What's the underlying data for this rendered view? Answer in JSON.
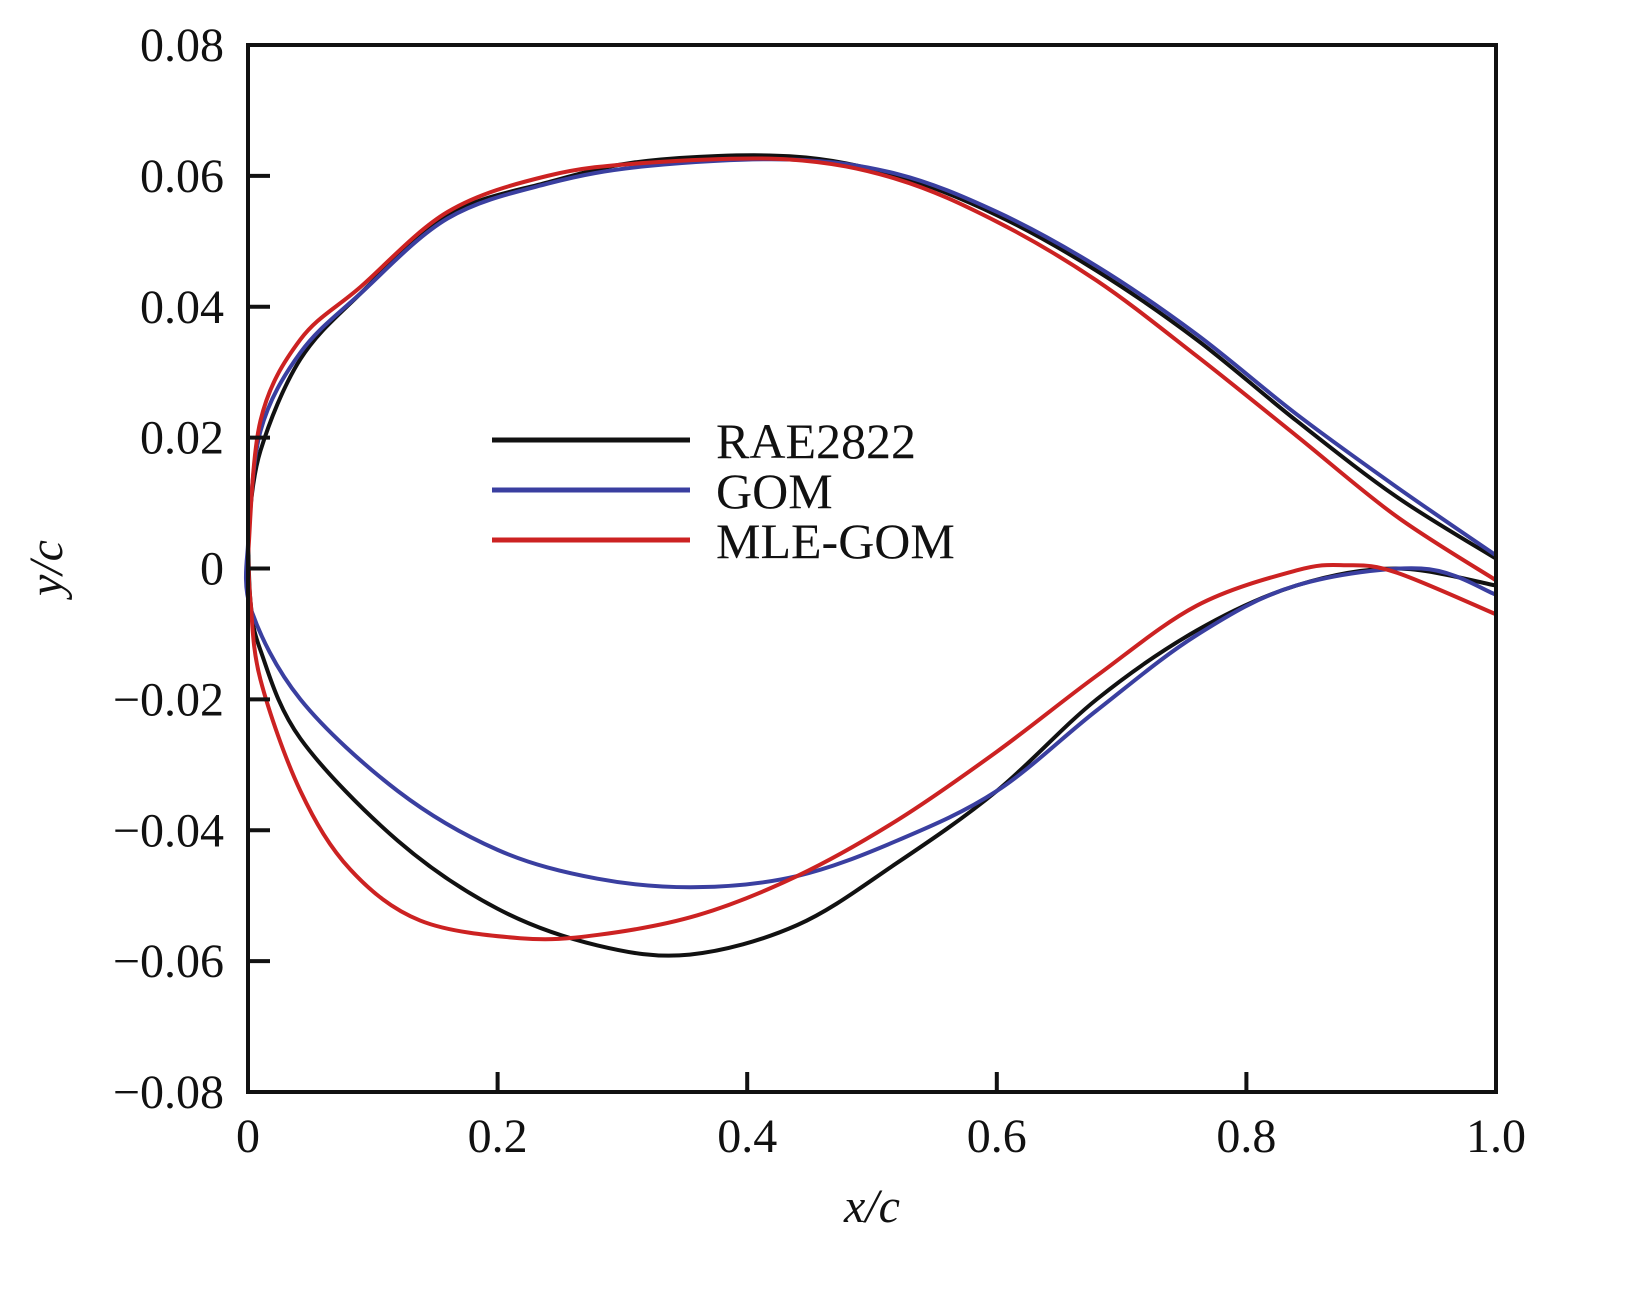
{
  "chart_data": {
    "type": "line",
    "title": "",
    "xlabel": "x/c",
    "ylabel": "y/c",
    "xlim": [
      0,
      1.0
    ],
    "ylim": [
      -0.08,
      0.08
    ],
    "xticks": [
      0,
      0.2,
      0.4,
      0.6,
      0.8,
      1.0
    ],
    "xtick_labels": [
      "0",
      "0.2",
      "0.4",
      "0.6",
      "0.8",
      "1.0"
    ],
    "yticks": [
      -0.08,
      -0.06,
      -0.04,
      -0.02,
      0,
      0.02,
      0.04,
      0.06,
      0.08
    ],
    "ytick_labels": [
      "−0.08",
      "−0.06",
      "−0.04",
      "−0.02",
      "0",
      "0.02",
      "0.04",
      "0.06",
      "0.08"
    ],
    "grid": false,
    "legend_position": "center-left",
    "series": [
      {
        "name": "RAE2822",
        "color": "#111111",
        "upper": [
          [
            0,
            0.006
          ],
          [
            0.01,
            0.018
          ],
          [
            0.042,
            0.032
          ],
          [
            0.09,
            0.042
          ],
          [
            0.16,
            0.054
          ],
          [
            0.24,
            0.059
          ],
          [
            0.32,
            0.0623
          ],
          [
            0.434,
            0.063
          ],
          [
            0.52,
            0.06
          ],
          [
            0.6,
            0.054
          ],
          [
            0.68,
            0.0455
          ],
          [
            0.76,
            0.035
          ],
          [
            0.84,
            0.0226
          ],
          [
            0.92,
            0.011
          ],
          [
            1.0,
            0.0015
          ]
        ],
        "lower": [
          [
            0,
            0.006
          ],
          [
            0.002,
            -0.005
          ],
          [
            0.01,
            -0.0125
          ],
          [
            0.042,
            -0.026
          ],
          [
            0.12,
            -0.0416
          ],
          [
            0.2,
            -0.052
          ],
          [
            0.28,
            -0.0576
          ],
          [
            0.354,
            -0.059
          ],
          [
            0.44,
            -0.0545
          ],
          [
            0.52,
            -0.045
          ],
          [
            0.6,
            -0.034
          ],
          [
            0.68,
            -0.02
          ],
          [
            0.76,
            -0.0095
          ],
          [
            0.84,
            -0.0026
          ],
          [
            0.92,
            0
          ],
          [
            1.0,
            -0.0026
          ]
        ]
      },
      {
        "name": "GOM",
        "color": "#3a3fa0",
        "upper": [
          [
            0,
            0.004
          ],
          [
            0.01,
            0.021
          ],
          [
            0.042,
            0.033
          ],
          [
            0.09,
            0.042
          ],
          [
            0.16,
            0.0535
          ],
          [
            0.24,
            0.0588
          ],
          [
            0.32,
            0.0615
          ],
          [
            0.434,
            0.0625
          ],
          [
            0.52,
            0.0603
          ],
          [
            0.6,
            0.0545
          ],
          [
            0.68,
            0.0462
          ],
          [
            0.76,
            0.0358
          ],
          [
            0.84,
            0.0236
          ],
          [
            0.92,
            0.0125
          ],
          [
            1.0,
            0.002
          ]
        ],
        "lower": [
          [
            0,
            0.004
          ],
          [
            0.002,
            -0.006
          ],
          [
            0.042,
            -0.02
          ],
          [
            0.12,
            -0.034
          ],
          [
            0.2,
            -0.043
          ],
          [
            0.28,
            -0.0474
          ],
          [
            0.36,
            -0.0487
          ],
          [
            0.44,
            -0.047
          ],
          [
            0.52,
            -0.0416
          ],
          [
            0.6,
            -0.034
          ],
          [
            0.68,
            -0.0217
          ],
          [
            0.76,
            -0.0102
          ],
          [
            0.84,
            -0.0026
          ],
          [
            0.94,
            0
          ],
          [
            1.0,
            -0.004
          ]
        ]
      },
      {
        "name": "MLE-GOM",
        "color": "#cc2222",
        "upper": [
          [
            0,
            0.002
          ],
          [
            0.01,
            0.0226
          ],
          [
            0.042,
            0.035
          ],
          [
            0.09,
            0.043
          ],
          [
            0.16,
            0.0545
          ],
          [
            0.24,
            0.06
          ],
          [
            0.32,
            0.062
          ],
          [
            0.434,
            0.0625
          ],
          [
            0.52,
            0.0595
          ],
          [
            0.6,
            0.053
          ],
          [
            0.68,
            0.044
          ],
          [
            0.76,
            0.0325
          ],
          [
            0.84,
            0.0203
          ],
          [
            0.92,
            0.008
          ],
          [
            1.0,
            -0.0018
          ]
        ],
        "lower": [
          [
            0,
            0.002
          ],
          [
            0.002,
            -0.005
          ],
          [
            0.01,
            -0.017
          ],
          [
            0.042,
            -0.034
          ],
          [
            0.082,
            -0.046
          ],
          [
            0.138,
            -0.0538
          ],
          [
            0.218,
            -0.0565
          ],
          [
            0.28,
            -0.056
          ],
          [
            0.36,
            -0.053
          ],
          [
            0.44,
            -0.047
          ],
          [
            0.52,
            -0.0385
          ],
          [
            0.6,
            -0.028
          ],
          [
            0.68,
            -0.0164
          ],
          [
            0.76,
            -0.0057
          ],
          [
            0.84,
            -0.0003
          ],
          [
            0.88,
            0.0005
          ],
          [
            0.92,
            -0.0006
          ],
          [
            1.0,
            -0.007
          ]
        ]
      }
    ]
  }
}
